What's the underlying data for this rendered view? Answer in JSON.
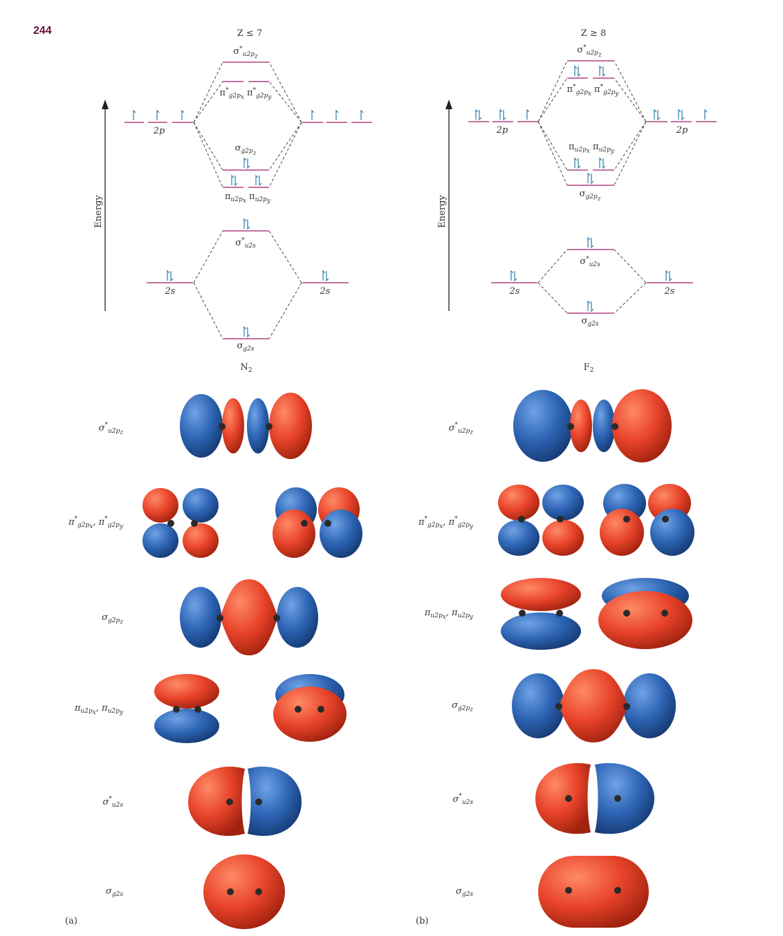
{
  "page_number": "244",
  "colors": {
    "level": "#b5407f",
    "electron": "#2a7aa8",
    "red_lobe": "#e64a2b",
    "blue_lobe": "#2f67b6",
    "nucleus": "#2a2a2a",
    "page_number": "#6a1240"
  },
  "left": {
    "condition": "Z ≤ 7",
    "molecule": "N₂",
    "panel": "(a)",
    "energy_label": "Energy",
    "atomic_2p": "2p",
    "atomic_2s": "2s",
    "mo": {
      "sigma_star_2pz": "σ*u2pz",
      "pi_star": "π*g2px π*g2py",
      "sigma_2pz": "σg2pz",
      "pi_2p": "πu2px πu2py",
      "sigma_star_2s": "σ*u2s",
      "sigma_2s": "σg2s"
    },
    "orbitals": [
      {
        "label": "σ*u2pz",
        "icon": "sigma-star-u2pz-orbital-icon"
      },
      {
        "label": "π*g2px, π*g2py",
        "icon": "pi-star-g2p-orbital-icon"
      },
      {
        "label": "σg2pz",
        "icon": "sigma-g2pz-orbital-icon"
      },
      {
        "label": "πu2px, πu2py",
        "icon": "pi-u2p-orbital-icon"
      },
      {
        "label": "σ*u2s",
        "icon": "sigma-star-u2s-orbital-icon"
      },
      {
        "label": "σg2s",
        "icon": "sigma-g2s-orbital-icon"
      }
    ]
  },
  "right": {
    "condition": "Z ≥ 8",
    "molecule": "F₂",
    "panel": "(b)",
    "energy_label": "Energy",
    "atomic_2p": "2p",
    "atomic_2s": "2s",
    "mo": {
      "sigma_star_2pz": "σ*u2pz",
      "pi_star": "π*g2px π*g2py",
      "pi_2p": "πu2px πu2py",
      "sigma_2pz": "σg2pz",
      "sigma_star_2s": "σ*u2s",
      "sigma_2s": "σg2s"
    },
    "orbitals": [
      {
        "label": "σ*u2pz",
        "icon": "sigma-star-u2pz-orbital-icon"
      },
      {
        "label": "π*g2px, π*g2py",
        "icon": "pi-star-g2p-orbital-icon"
      },
      {
        "label": "πu2px, πu2py",
        "icon": "pi-u2p-orbital-icon"
      },
      {
        "label": "σg2pz",
        "icon": "sigma-g2pz-orbital-icon"
      },
      {
        "label": "σ*u2s",
        "icon": "sigma-star-u2s-orbital-icon"
      },
      {
        "label": "σg2s",
        "icon": "sigma-g2s-orbital-icon"
      }
    ]
  }
}
